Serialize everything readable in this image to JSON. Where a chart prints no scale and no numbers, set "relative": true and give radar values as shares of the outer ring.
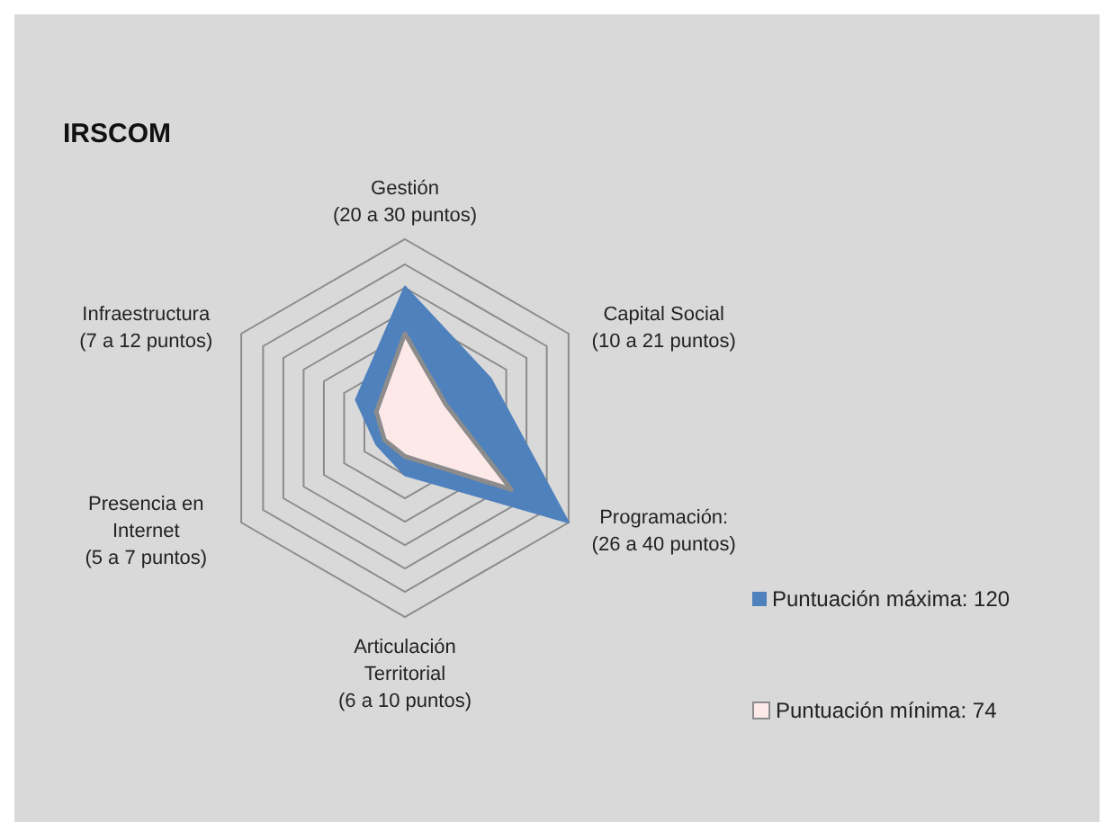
{
  "chart_data": {
    "type": "radar",
    "title": "IRSCOM",
    "relative": true,
    "grid": true,
    "legend": "right",
    "marker": "none",
    "categories": [
      "Gestión\n(20 a 30 puntos)",
      "Capital Social\n(10 a 21 puntos)",
      "Programación:\n(26 a 40 puntos)",
      "Articulación\nTerritorial\n(6 a 10 puntos)",
      "Presencia en\nInternet\n(5 a 7 puntos)",
      "Infraestructura\n(7 a 12 puntos)"
    ],
    "series": [
      {
        "name": "Puntuación máxima: 120",
        "color": "#4f81bd",
        "values": [
          0.75,
          0.525,
          1,
          0.25,
          0.175,
          0.3
        ]
      },
      {
        "name": "Puntuación mínima: 74",
        "color": "#fde9e7",
        "values": [
          0.5,
          0.25,
          0.65,
          0.15,
          0.125,
          0.175
        ]
      }
    ]
  }
}
